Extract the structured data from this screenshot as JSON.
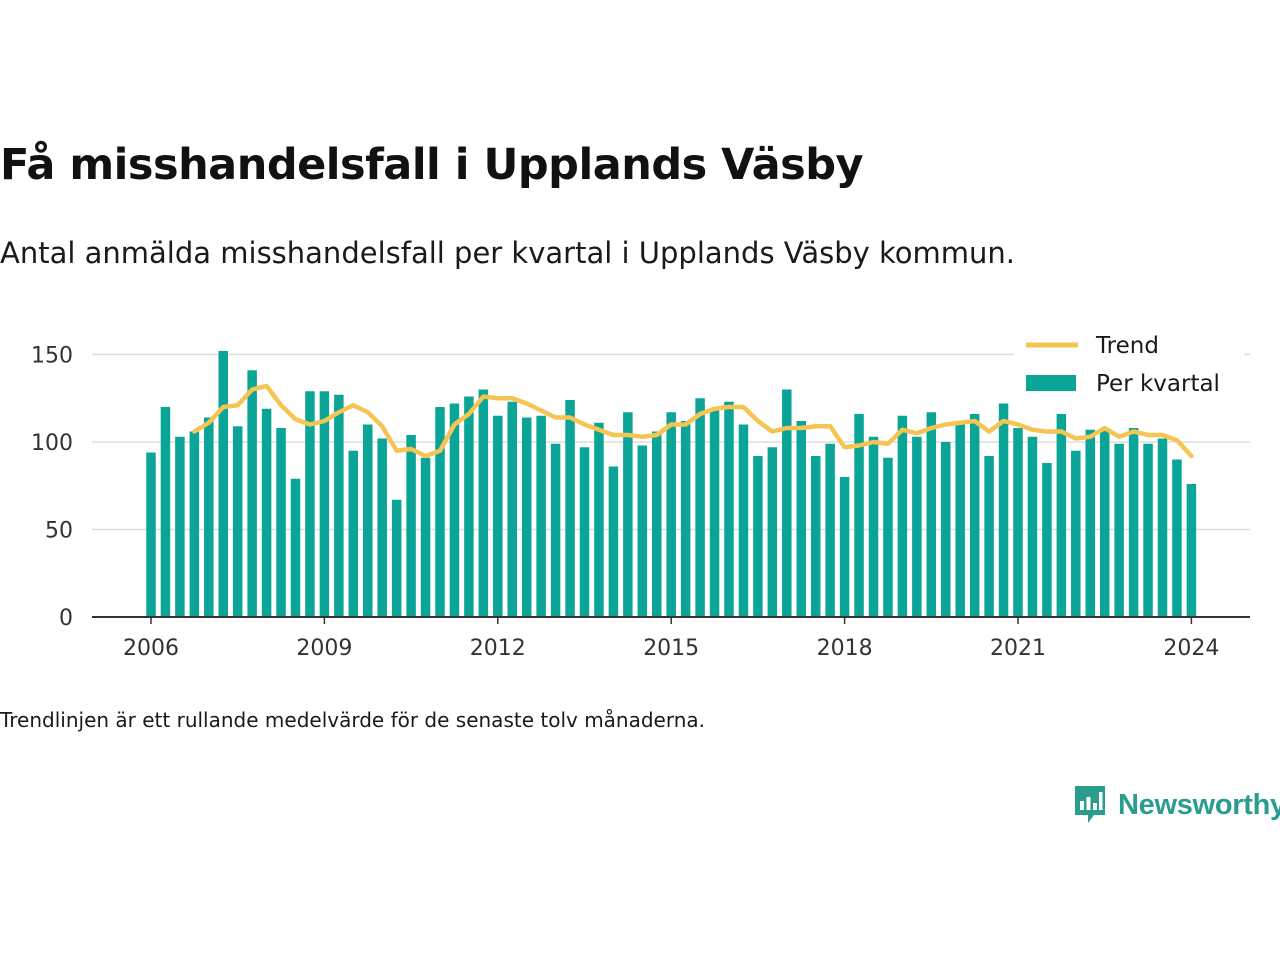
{
  "title": "Få misshandelsfall i Upplands Väsby",
  "subtitle": "Antal anmälda misshandelsfall per kvartal i Upplands Väsby kommun.",
  "footnote": "Trendlinjen är ett rullande medelvärde för de senaste tolv månaderna.",
  "brand": {
    "name": "Newsworthy",
    "icon": "newsworthy-logo-icon",
    "color": "#2a9d8f"
  },
  "chart_data": {
    "type": "bar",
    "x_start": "2006 Q1",
    "x_ticks": [
      {
        "label": "2006",
        "year": 2006
      },
      {
        "label": "2009",
        "year": 2009
      },
      {
        "label": "2012",
        "year": 2012
      },
      {
        "label": "2015",
        "year": 2015
      },
      {
        "label": "2018",
        "year": 2018
      },
      {
        "label": "2021",
        "year": 2021
      },
      {
        "label": "2024",
        "year": 2024
      }
    ],
    "y_ticks": [
      "0",
      "50",
      "100",
      "150"
    ],
    "ylim": [
      0,
      150
    ],
    "grid": true,
    "legend_position": "top-right",
    "bar_color": "#0aa596",
    "line_color": "#f6c453",
    "series": [
      {
        "name": "Per kvartal",
        "type": "bar",
        "values": [
          94,
          120,
          103,
          106,
          114,
          152,
          109,
          141,
          119,
          108,
          79,
          129,
          129,
          127,
          95,
          110,
          102,
          67,
          104,
          91,
          120,
          122,
          126,
          130,
          115,
          123,
          114,
          115,
          99,
          124,
          97,
          111,
          86,
          117,
          98,
          106,
          117,
          112,
          125,
          118,
          123,
          110,
          92,
          97,
          130,
          112,
          92,
          99,
          80,
          116,
          103,
          91,
          115,
          103,
          117,
          100,
          112,
          116,
          92,
          122,
          108,
          103,
          88,
          119,
          95,
          107,
          108,
          99,
          108,
          99,
          102,
          90,
          76
        ]
      },
      {
        "name": "Trend",
        "type": "line",
        "values": [
          null,
          null,
          null,
          106,
          111,
          120,
          121,
          130,
          132,
          121,
          113,
          110,
          112,
          117,
          121,
          117,
          109,
          95,
          96,
          92,
          95,
          110,
          116,
          126,
          125,
          125,
          122,
          118,
          114,
          114,
          110,
          107,
          104,
          104,
          103,
          104,
          110,
          110,
          116,
          119,
          120,
          120,
          112,
          106,
          108,
          108,
          109,
          109,
          97,
          98,
          100,
          99,
          107,
          105,
          108,
          110,
          111,
          112,
          106,
          112,
          110,
          107,
          106,
          106,
          102,
          103,
          108,
          103,
          106,
          104,
          104,
          101,
          92
        ]
      }
    ]
  }
}
